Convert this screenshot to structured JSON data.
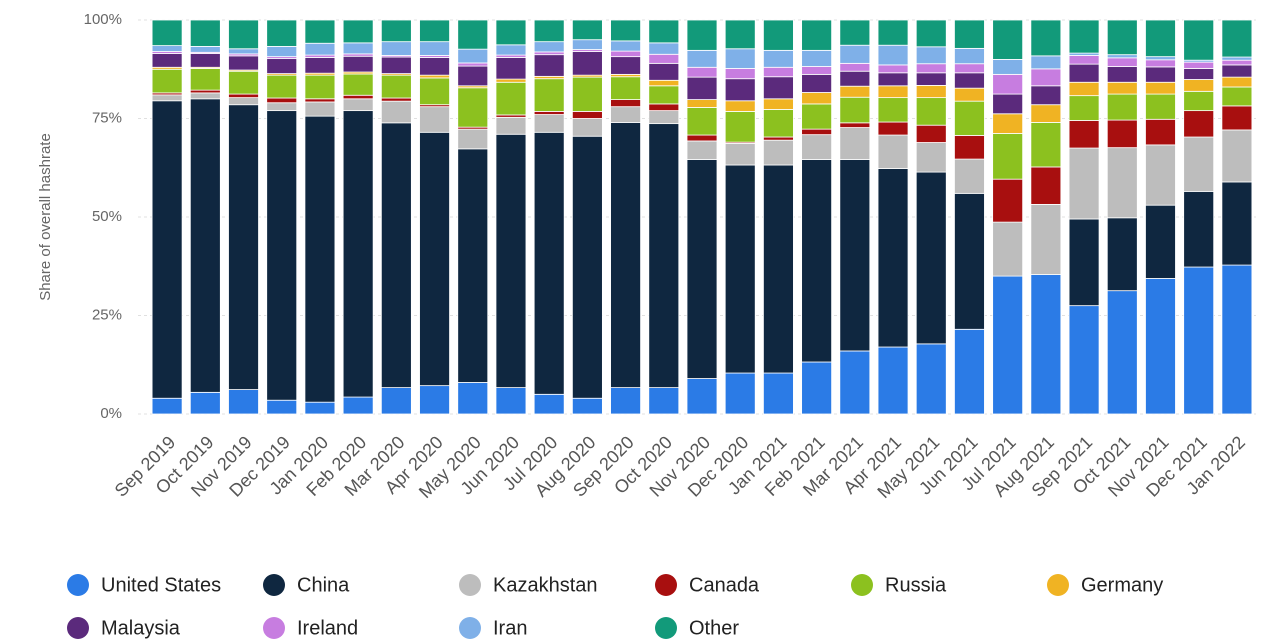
{
  "chart_data": {
    "type": "stacked-bar",
    "y_label": "Share of overall hashrate",
    "categories": [
      "Sep 2019",
      "Oct 2019",
      "Nov 2019",
      "Dec 2019",
      "Jan 2020",
      "Feb 2020",
      "Mar 2020",
      "Apr 2020",
      "May 2020",
      "Jun 2020",
      "Jul 2020",
      "Aug 2020",
      "Sep 2020",
      "Oct 2020",
      "Nov 2020",
      "Dec 2020",
      "Jan 2021",
      "Feb 2021",
      "Mar 2021",
      "Apr 2021",
      "May 2021",
      "Jun 2021",
      "Jul 2021",
      "Aug 2021",
      "Sep 2021",
      "Oct 2021",
      "Nov 2021",
      "Dec 2021",
      "Jan 2022"
    ],
    "series": [
      {
        "name": "United States",
        "color": "#2b7be6",
        "values": [
          4,
          5.5,
          6.2,
          3.5,
          3,
          4.3,
          6.7,
          7.2,
          8,
          6.7,
          5,
          4,
          6.7,
          6.7,
          9,
          10.4,
          10.4,
          13.2,
          16,
          17,
          17.8,
          21.5,
          35,
          35.4,
          27.5,
          31.3,
          34.4,
          37.3,
          37.8
        ]
      },
      {
        "name": "China",
        "color": "#0f2740",
        "values": [
          75.5,
          74.5,
          72.3,
          73.5,
          72.6,
          72.7,
          67.2,
          64.3,
          59.3,
          64.3,
          66.5,
          66.5,
          67.3,
          67,
          55.6,
          52.8,
          52.8,
          51.4,
          48.6,
          45.3,
          43.6,
          34.5,
          0,
          0,
          22,
          18.5,
          18.6,
          19.2,
          21.1
        ]
      },
      {
        "name": "Kazakhstan",
        "color": "#bdbdbd",
        "values": [
          1.5,
          1.5,
          1.8,
          2,
          3.6,
          3,
          5.5,
          6.5,
          5,
          4.3,
          4.5,
          4.5,
          4,
          3.3,
          4.7,
          5.5,
          6.3,
          6.3,
          8.1,
          8.5,
          7.5,
          8.7,
          13.7,
          17.8,
          18,
          17.8,
          15.3,
          13.8,
          13.2
        ]
      },
      {
        "name": "Canada",
        "color": "#a80f0f",
        "values": [
          0.5,
          0.7,
          0.9,
          1.2,
          0.8,
          0.9,
          0.8,
          0.5,
          0.5,
          0.6,
          0.8,
          1.8,
          1.8,
          1.7,
          1.5,
          0.3,
          0.8,
          1.4,
          1.2,
          3.3,
          4.4,
          6,
          10.9,
          9.5,
          7,
          7,
          6.5,
          6.7,
          6.1
        ]
      },
      {
        "name": "Russia",
        "color": "#8cc11f",
        "values": [
          6,
          5.5,
          5.8,
          5.8,
          6,
          5.4,
          5.8,
          6.8,
          10,
          8.3,
          8.3,
          8.7,
          5.8,
          4.6,
          7,
          7.8,
          7,
          6.4,
          6.5,
          6.2,
          7,
          8.7,
          11.6,
          11.3,
          6.3,
          6.6,
          6.4,
          4.9,
          4.8
        ]
      },
      {
        "name": "Germany",
        "color": "#f0b323",
        "values": [
          0.5,
          0.3,
          0.3,
          0.4,
          0.5,
          0.5,
          0.4,
          0.7,
          0.5,
          0.8,
          0.6,
          0.5,
          0.6,
          1.4,
          2,
          2.7,
          2.7,
          2.9,
          2.8,
          3,
          3.1,
          3.3,
          5,
          4.5,
          3.4,
          3,
          3,
          3,
          2.5
        ]
      },
      {
        "name": "Malaysia",
        "color": "#5b2a7c",
        "values": [
          3.5,
          3.5,
          3.6,
          3.8,
          4,
          4,
          4.2,
          4.5,
          5,
          5.5,
          5.5,
          6,
          4.5,
          4.3,
          5.7,
          5.6,
          5.6,
          4.6,
          3.8,
          3.3,
          3.2,
          3.9,
          5,
          4.8,
          4.6,
          4,
          3.9,
          2.8,
          3.1
        ]
      },
      {
        "name": "Ireland",
        "color": "#c77de0",
        "values": [
          0.5,
          0.3,
          0.5,
          0.5,
          0.6,
          0.6,
          0.4,
          0.5,
          0.8,
          0.6,
          0.7,
          0.5,
          1.4,
          2.3,
          2.5,
          2.6,
          2.4,
          2,
          2,
          2,
          2.3,
          2.3,
          5,
          4.3,
          2.2,
          2.2,
          1.8,
          1.6,
          1.2
        ]
      },
      {
        "name": "Iran",
        "color": "#7fb0e8",
        "values": [
          1.5,
          1.5,
          1.3,
          2.6,
          3,
          2.8,
          3.5,
          3.5,
          3.5,
          2.6,
          2.6,
          2.5,
          2.6,
          2.9,
          4.3,
          5,
          4.3,
          4.1,
          4.6,
          5,
          4.3,
          3.9,
          3.8,
          3.3,
          0.6,
          0.8,
          0.8,
          0.5,
          0.8
        ]
      },
      {
        "name": "Other",
        "color": "#129a7a",
        "values": [
          6.5,
          6.7,
          7.3,
          6.7,
          5.9,
          5.8,
          5.5,
          5.5,
          7.4,
          6.3,
          5.5,
          5,
          5.3,
          5.8,
          7.7,
          7.3,
          7.7,
          7.7,
          6.4,
          6.4,
          6.8,
          7.2,
          10,
          9.1,
          8.4,
          8.8,
          9.3,
          10.2,
          9.4
        ]
      }
    ],
    "ylim": [
      0,
      100
    ],
    "yticks": [
      {
        "value": 0,
        "label": "0%"
      },
      {
        "value": 25,
        "label": "25%"
      },
      {
        "value": 50,
        "label": "50%"
      },
      {
        "value": 75,
        "label": "75%"
      },
      {
        "value": 100,
        "label": "100%"
      }
    ],
    "grid": true
  }
}
